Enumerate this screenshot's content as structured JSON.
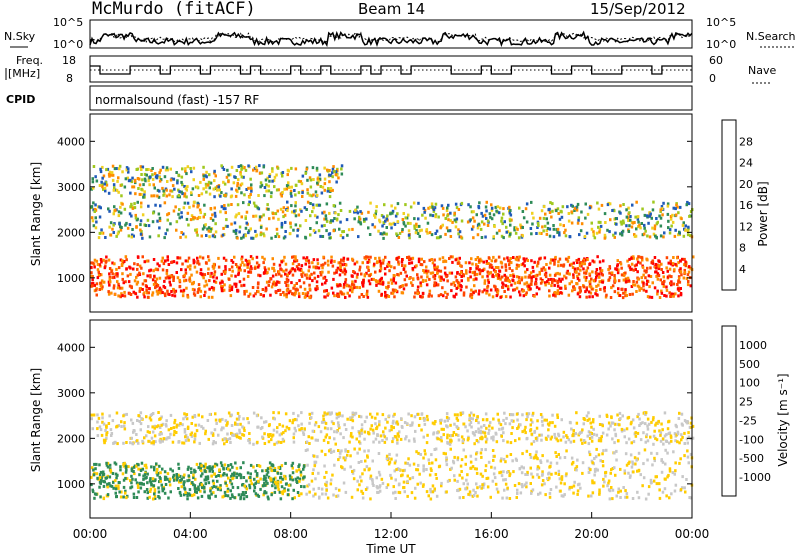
{
  "header": {
    "station": "McMurdo (fitACF)",
    "beam": "Beam 14",
    "date": "15/Sep/2012"
  },
  "nsky_panel": {
    "left_label": "N.Sky",
    "right_label": "N.Search",
    "left_ticks": [
      "10^5",
      "10^0"
    ],
    "right_ticks": [
      "10^5",
      "10^0"
    ]
  },
  "freq_panel": {
    "left_label_1": "Freq.",
    "left_label_2": "[MHz]",
    "left_ticks": [
      "18",
      "8"
    ],
    "right_label": "Nave",
    "right_ticks": [
      "60",
      "0"
    ]
  },
  "cpid_panel": {
    "label": "CPID",
    "text": "normalsound (fast) -157 RF"
  },
  "chart_data": [
    {
      "type": "heatmap",
      "name": "power",
      "ylabel": "Slant Range [km]",
      "ylim": [
        250,
        4600
      ],
      "yticks": [
        "1000",
        "2000",
        "3000",
        "4000"
      ],
      "ytick_values": [
        1000,
        2000,
        3000,
        4000
      ],
      "x_hours": [
        0,
        24
      ],
      "colorbar": {
        "label": "Power [dB]",
        "ticks": [
          "4",
          "8",
          "12",
          "16",
          "20",
          "24",
          "28"
        ],
        "colors": [
          "#0000ff",
          "#1f5ab8",
          "#2e8b57",
          "#a0c81e",
          "#f0d020",
          "#ff8c00",
          "#ff4500",
          "#ff0000"
        ]
      },
      "scatter_bands": [
        {
          "from_hr": 0,
          "to_hr": 24,
          "low_km": 600,
          "high_km": 1500
        },
        {
          "from_hr": 0,
          "to_hr": 24,
          "low_km": 1900,
          "high_km": 2700
        },
        {
          "from_hr": 0,
          "to_hr": 10,
          "low_km": 2800,
          "high_km": 3500
        }
      ]
    },
    {
      "type": "heatmap",
      "name": "velocity",
      "ylabel": "Slant Range [km]",
      "ylim": [
        250,
        4600
      ],
      "yticks": [
        "1000",
        "2000",
        "3000",
        "4000"
      ],
      "ytick_values": [
        1000,
        2000,
        3000,
        4000
      ],
      "x_hours": [
        0,
        24
      ],
      "colorbar": {
        "label": "Velocity [m s⁻¹]",
        "ticks": [
          "1000",
          "500",
          "100",
          "25",
          "-25",
          "-100",
          "-500",
          "-1000"
        ],
        "colors": [
          "#0000ff",
          "#1f5ab8",
          "#2e8b57",
          "#66cc33",
          "#c8c8c8",
          "#ffcc00",
          "#ff8c00",
          "#ff4500",
          "#ff0000"
        ]
      },
      "scatter_bands": [
        {
          "from_hr": 0,
          "to_hr": 8.5,
          "low_km": 700,
          "high_km": 1500
        },
        {
          "from_hr": 8.5,
          "to_hr": 24,
          "low_km": 700,
          "high_km": 1800
        },
        {
          "from_hr": 0,
          "to_hr": 24,
          "low_km": 1900,
          "high_km": 2600
        }
      ]
    }
  ],
  "x_axis": {
    "ticks": [
      "00:00",
      "04:00",
      "08:00",
      "12:00",
      "16:00",
      "20:00",
      "00:00"
    ],
    "label": "Time UT"
  }
}
